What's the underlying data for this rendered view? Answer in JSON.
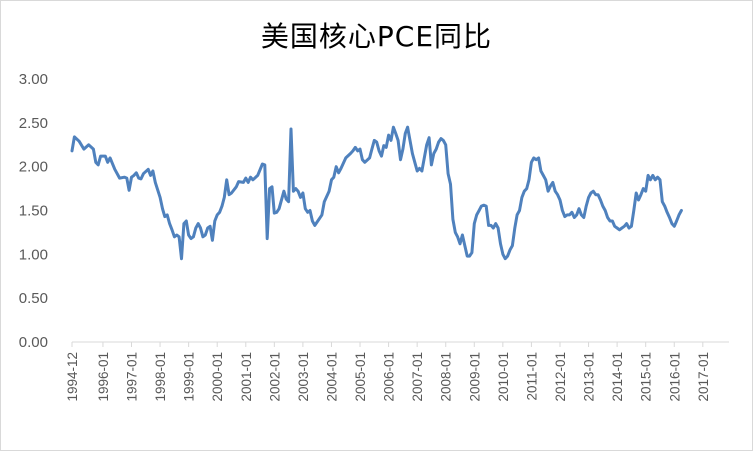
{
  "chart_data": {
    "type": "line",
    "title": "美国核心PCE同比",
    "xlabel": "",
    "ylabel": "",
    "ylim": [
      0,
      3
    ],
    "grid": false,
    "legend": "none",
    "y_ticks": [
      "0.00",
      "0.50",
      "1.00",
      "1.50",
      "2.00",
      "2.50",
      "3.00"
    ],
    "x_ticks": [
      "1994-12",
      "1996-01",
      "1997-01",
      "1998-01",
      "1999-01",
      "2000-01",
      "2001-01",
      "2002-01",
      "2003-01",
      "2004-01",
      "2005-01",
      "2006-01",
      "2007-01",
      "2008-01",
      "2009-01",
      "2010-01",
      "2011-01",
      "2012-01",
      "2013-01",
      "2014-01",
      "2015-01",
      "2016-01",
      "2017-01"
    ],
    "series_color": "#4f81bd",
    "series": [
      {
        "values": [
          [
            "1994-12",
            2.18
          ],
          [
            "1995-01",
            2.34
          ],
          [
            "1995-03",
            2.29
          ],
          [
            "1995-05",
            2.2
          ],
          [
            "1995-07",
            2.25
          ],
          [
            "1995-09",
            2.2
          ],
          [
            "1995-10",
            2.05
          ],
          [
            "1995-11",
            2.02
          ],
          [
            "1995-12",
            2.12
          ],
          [
            "1996-02",
            2.12
          ],
          [
            "1996-03",
            2.05
          ],
          [
            "1996-04",
            2.1
          ],
          [
            "1996-06",
            1.97
          ],
          [
            "1996-08",
            1.87
          ],
          [
            "1996-10",
            1.88
          ],
          [
            "1996-11",
            1.87
          ],
          [
            "1996-12",
            1.73
          ],
          [
            "1997-01",
            1.88
          ],
          [
            "1997-02",
            1.9
          ],
          [
            "1997-03",
            1.93
          ],
          [
            "1997-04",
            1.87
          ],
          [
            "1997-05",
            1.86
          ],
          [
            "1997-06",
            1.92
          ],
          [
            "1997-08",
            1.97
          ],
          [
            "1997-09",
            1.9
          ],
          [
            "1997-10",
            1.95
          ],
          [
            "1997-11",
            1.82
          ],
          [
            "1998-01",
            1.65
          ],
          [
            "1998-02",
            1.52
          ],
          [
            "1998-03",
            1.43
          ],
          [
            "1998-04",
            1.45
          ],
          [
            "1998-05",
            1.35
          ],
          [
            "1998-06",
            1.28
          ],
          [
            "1998-07",
            1.2
          ],
          [
            "1998-08",
            1.22
          ],
          [
            "1998-09",
            1.2
          ],
          [
            "1998-10",
            0.95
          ],
          [
            "1998-11",
            1.35
          ],
          [
            "1998-12",
            1.38
          ],
          [
            "1999-01",
            1.22
          ],
          [
            "1999-02",
            1.18
          ],
          [
            "1999-03",
            1.2
          ],
          [
            "1999-04",
            1.3
          ],
          [
            "1999-05",
            1.35
          ],
          [
            "1999-06",
            1.3
          ],
          [
            "1999-07",
            1.2
          ],
          [
            "1999-08",
            1.22
          ],
          [
            "1999-09",
            1.3
          ],
          [
            "1999-10",
            1.32
          ],
          [
            "1999-11",
            1.16
          ],
          [
            "1999-12",
            1.38
          ],
          [
            "2000-01",
            1.45
          ],
          [
            "2000-02",
            1.48
          ],
          [
            "2000-03",
            1.55
          ],
          [
            "2000-04",
            1.65
          ],
          [
            "2000-05",
            1.85
          ],
          [
            "2000-06",
            1.68
          ],
          [
            "2000-07",
            1.7
          ],
          [
            "2000-09",
            1.77
          ],
          [
            "2000-10",
            1.83
          ],
          [
            "2000-12",
            1.82
          ],
          [
            "2001-01",
            1.87
          ],
          [
            "2001-02",
            1.82
          ],
          [
            "2001-03",
            1.88
          ],
          [
            "2001-04",
            1.85
          ],
          [
            "2001-06",
            1.9
          ],
          [
            "2001-08",
            2.03
          ],
          [
            "2001-09",
            2.02
          ],
          [
            "2001-10",
            1.18
          ],
          [
            "2001-11",
            1.75
          ],
          [
            "2001-12",
            1.77
          ],
          [
            "2002-01",
            1.47
          ],
          [
            "2002-02",
            1.48
          ],
          [
            "2002-03",
            1.52
          ],
          [
            "2002-05",
            1.72
          ],
          [
            "2002-06",
            1.63
          ],
          [
            "2002-07",
            1.6
          ],
          [
            "2002-08",
            2.43
          ],
          [
            "2002-09",
            1.72
          ],
          [
            "2002-10",
            1.75
          ],
          [
            "2002-11",
            1.72
          ],
          [
            "2002-12",
            1.65
          ],
          [
            "2003-01",
            1.7
          ],
          [
            "2003-02",
            1.52
          ],
          [
            "2003-03",
            1.48
          ],
          [
            "2003-04",
            1.5
          ],
          [
            "2003-05",
            1.38
          ],
          [
            "2003-06",
            1.33
          ],
          [
            "2003-07",
            1.37
          ],
          [
            "2003-09",
            1.45
          ],
          [
            "2003-10",
            1.6
          ],
          [
            "2003-12",
            1.72
          ],
          [
            "2004-01",
            1.85
          ],
          [
            "2004-02",
            1.88
          ],
          [
            "2004-03",
            2.0
          ],
          [
            "2004-04",
            1.93
          ],
          [
            "2004-05",
            1.98
          ],
          [
            "2004-07",
            2.1
          ],
          [
            "2004-09",
            2.15
          ],
          [
            "2004-10",
            2.18
          ],
          [
            "2004-11",
            2.22
          ],
          [
            "2004-12",
            2.18
          ],
          [
            "2005-01",
            2.2
          ],
          [
            "2005-02",
            2.08
          ],
          [
            "2005-03",
            2.05
          ],
          [
            "2005-05",
            2.1
          ],
          [
            "2005-06",
            2.2
          ],
          [
            "2005-07",
            2.3
          ],
          [
            "2005-08",
            2.28
          ],
          [
            "2005-09",
            2.18
          ],
          [
            "2005-10",
            2.12
          ],
          [
            "2005-11",
            2.24
          ],
          [
            "2005-12",
            2.22
          ],
          [
            "2006-01",
            2.36
          ],
          [
            "2006-02",
            2.3
          ],
          [
            "2006-03",
            2.45
          ],
          [
            "2006-04",
            2.38
          ],
          [
            "2006-05",
            2.3
          ],
          [
            "2006-06",
            2.08
          ],
          [
            "2006-07",
            2.2
          ],
          [
            "2006-08",
            2.38
          ],
          [
            "2006-09",
            2.45
          ],
          [
            "2006-10",
            2.3
          ],
          [
            "2006-11",
            2.15
          ],
          [
            "2006-12",
            2.05
          ],
          [
            "2007-01",
            1.95
          ],
          [
            "2007-02",
            1.98
          ],
          [
            "2007-03",
            1.95
          ],
          [
            "2007-04",
            2.1
          ],
          [
            "2007-05",
            2.25
          ],
          [
            "2007-06",
            2.33
          ],
          [
            "2007-07",
            2.02
          ],
          [
            "2007-08",
            2.15
          ],
          [
            "2007-09",
            2.2
          ],
          [
            "2007-10",
            2.28
          ],
          [
            "2007-11",
            2.32
          ],
          [
            "2007-12",
            2.3
          ],
          [
            "2008-01",
            2.25
          ],
          [
            "2008-02",
            1.92
          ],
          [
            "2008-03",
            1.8
          ],
          [
            "2008-04",
            1.4
          ],
          [
            "2008-05",
            1.25
          ],
          [
            "2008-06",
            1.2
          ],
          [
            "2008-07",
            1.12
          ],
          [
            "2008-08",
            1.22
          ],
          [
            "2008-09",
            1.1
          ],
          [
            "2008-10",
            0.98
          ],
          [
            "2008-11",
            0.98
          ],
          [
            "2008-12",
            1.02
          ],
          [
            "2009-01",
            1.35
          ],
          [
            "2009-02",
            1.45
          ],
          [
            "2009-03",
            1.5
          ],
          [
            "2009-04",
            1.55
          ],
          [
            "2009-05",
            1.56
          ],
          [
            "2009-06",
            1.55
          ],
          [
            "2009-07",
            1.33
          ],
          [
            "2009-08",
            1.33
          ],
          [
            "2009-09",
            1.3
          ],
          [
            "2009-10",
            1.35
          ],
          [
            "2009-11",
            1.3
          ],
          [
            "2009-12",
            1.12
          ],
          [
            "2010-01",
            1.0
          ],
          [
            "2010-02",
            0.95
          ],
          [
            "2010-03",
            0.98
          ],
          [
            "2010-04",
            1.05
          ],
          [
            "2010-05",
            1.1
          ],
          [
            "2010-06",
            1.3
          ],
          [
            "2010-07",
            1.45
          ],
          [
            "2010-08",
            1.5
          ],
          [
            "2010-09",
            1.65
          ],
          [
            "2010-10",
            1.72
          ],
          [
            "2010-11",
            1.75
          ],
          [
            "2010-12",
            1.85
          ],
          [
            "2011-01",
            2.05
          ],
          [
            "2011-02",
            2.1
          ],
          [
            "2011-03",
            2.08
          ],
          [
            "2011-04",
            2.1
          ],
          [
            "2011-05",
            1.95
          ],
          [
            "2011-06",
            1.9
          ],
          [
            "2011-07",
            1.85
          ],
          [
            "2011-08",
            1.72
          ],
          [
            "2011-09",
            1.78
          ],
          [
            "2011-10",
            1.82
          ],
          [
            "2011-11",
            1.72
          ],
          [
            "2011-12",
            1.68
          ],
          [
            "2012-01",
            1.62
          ],
          [
            "2012-02",
            1.5
          ],
          [
            "2012-03",
            1.43
          ],
          [
            "2012-04",
            1.45
          ],
          [
            "2012-05",
            1.45
          ],
          [
            "2012-06",
            1.48
          ],
          [
            "2012-07",
            1.42
          ],
          [
            "2012-08",
            1.45
          ],
          [
            "2012-09",
            1.52
          ],
          [
            "2012-10",
            1.45
          ],
          [
            "2012-11",
            1.42
          ],
          [
            "2012-12",
            1.55
          ],
          [
            "2013-01",
            1.65
          ],
          [
            "2013-02",
            1.7
          ],
          [
            "2013-03",
            1.72
          ],
          [
            "2013-04",
            1.68
          ],
          [
            "2013-05",
            1.68
          ],
          [
            "2013-06",
            1.62
          ],
          [
            "2013-07",
            1.55
          ],
          [
            "2013-08",
            1.5
          ],
          [
            "2013-09",
            1.42
          ],
          [
            "2013-10",
            1.38
          ],
          [
            "2013-11",
            1.38
          ],
          [
            "2013-12",
            1.32
          ],
          [
            "2014-01",
            1.3
          ],
          [
            "2014-02",
            1.28
          ],
          [
            "2014-03",
            1.3
          ],
          [
            "2014-04",
            1.32
          ],
          [
            "2014-05",
            1.35
          ],
          [
            "2014-06",
            1.3
          ],
          [
            "2014-07",
            1.32
          ],
          [
            "2014-08",
            1.5
          ],
          [
            "2014-09",
            1.7
          ],
          [
            "2014-10",
            1.62
          ],
          [
            "2014-11",
            1.68
          ],
          [
            "2014-12",
            1.75
          ],
          [
            "2015-01",
            1.72
          ],
          [
            "2015-02",
            1.9
          ],
          [
            "2015-03",
            1.85
          ],
          [
            "2015-04",
            1.9
          ],
          [
            "2015-05",
            1.85
          ],
          [
            "2015-06",
            1.88
          ],
          [
            "2015-07",
            1.85
          ],
          [
            "2015-08",
            1.6
          ],
          [
            "2015-09",
            1.55
          ],
          [
            "2015-10",
            1.48
          ],
          [
            "2015-11",
            1.42
          ],
          [
            "2015-12",
            1.35
          ],
          [
            "2016-01",
            1.32
          ],
          [
            "2016-02",
            1.38
          ],
          [
            "2016-03",
            1.45
          ],
          [
            "2016-04",
            1.5
          ]
        ]
      }
    ]
  }
}
